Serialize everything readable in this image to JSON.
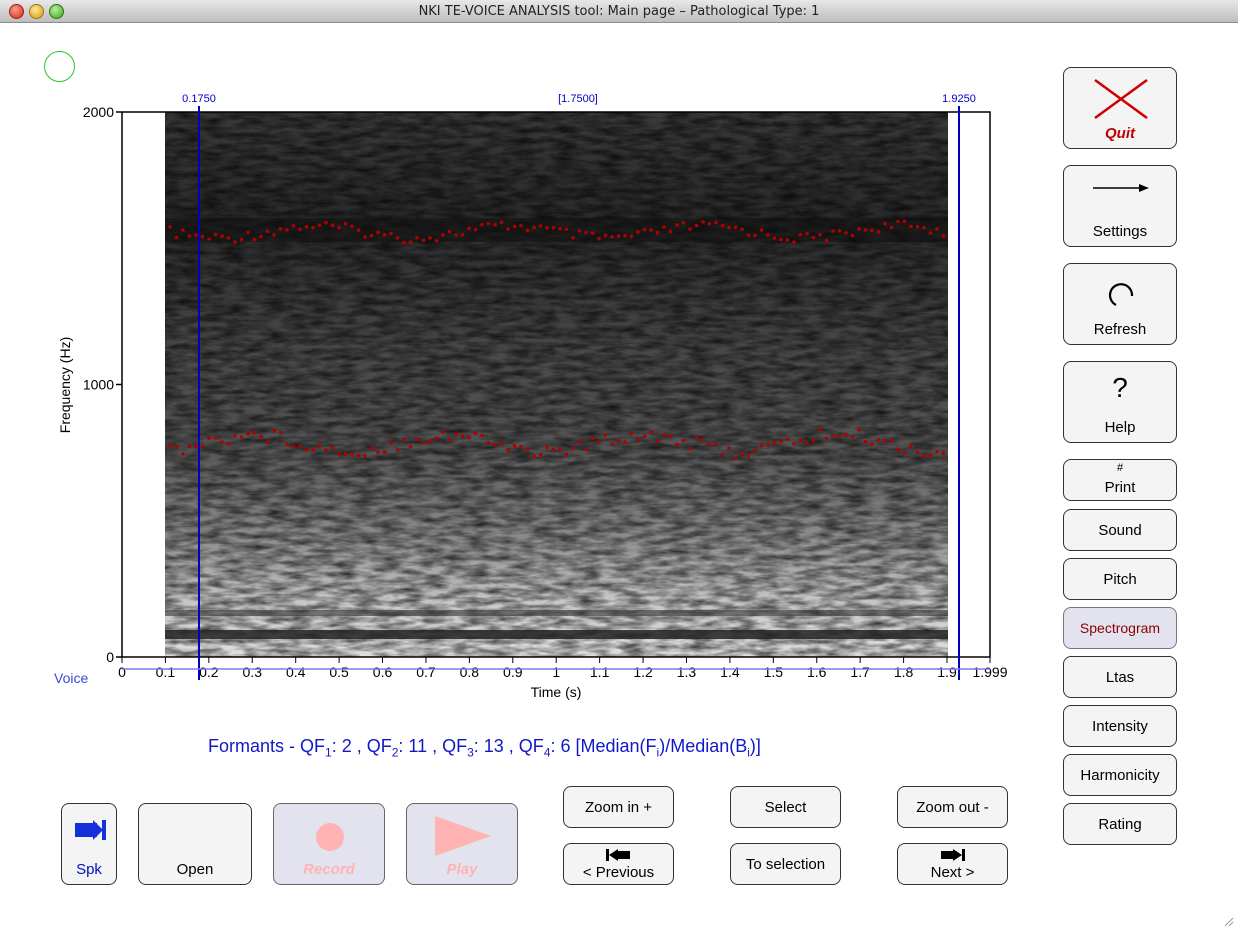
{
  "window": {
    "title": "NKI TE-VOICE ANALYSIS tool: Main page – Pathological Type: 1"
  },
  "plot": {
    "cursor_left": "0.1750",
    "cursor_mid": "[1.7500]",
    "cursor_right": "1.9250",
    "y_axis_label": "Frequency (Hz)",
    "x_axis_label": "Time (s)",
    "y_ticks": [
      "2000",
      "1000",
      "0"
    ],
    "x_ticks": [
      "0",
      "0.1",
      "0.2",
      "0.3",
      "0.4",
      "0.5",
      "0.6",
      "0.7",
      "0.8",
      "0.9",
      "1",
      "1.1",
      "1.2",
      "1.3",
      "1.4",
      "1.5",
      "1.6",
      "1.7",
      "1.8",
      "1.9",
      "1.999"
    ],
    "tier_label": "Voice",
    "formant_color": "#b00000",
    "cursor_color": "#0000c0"
  },
  "formants_text": {
    "prefix": "Formants - QF",
    "qf1": "1",
    "v1": ": 2 , QF",
    "qf2": "2",
    "v2": ": 11 , QF",
    "qf3": "3",
    "v3": ": 13 , QF",
    "qf4": "4",
    "v4": ": 6 [Median(F",
    "fi": "i",
    "mid": ")/Median(B",
    "bi": "i",
    "end": ")]"
  },
  "side_buttons": {
    "quit": "Quit",
    "settings": "Settings",
    "refresh": "Refresh",
    "help_glyph": "?",
    "help": "Help",
    "print_glyph": "#",
    "print": "Print",
    "sound": "Sound",
    "pitch": "Pitch",
    "spectrogram": "Spectrogram",
    "ltas": "Ltas",
    "intensity": "Intensity",
    "harmonicity": "Harmonicity",
    "rating": "Rating"
  },
  "bottom_buttons": {
    "spk": "Spk",
    "open": "Open",
    "record": "Record",
    "play": "Play",
    "zoom_in": "Zoom in +",
    "previous": "< Previous",
    "select": "Select",
    "to_selection": "To selection",
    "zoom_out": "Zoom out -",
    "next": "Next >"
  }
}
